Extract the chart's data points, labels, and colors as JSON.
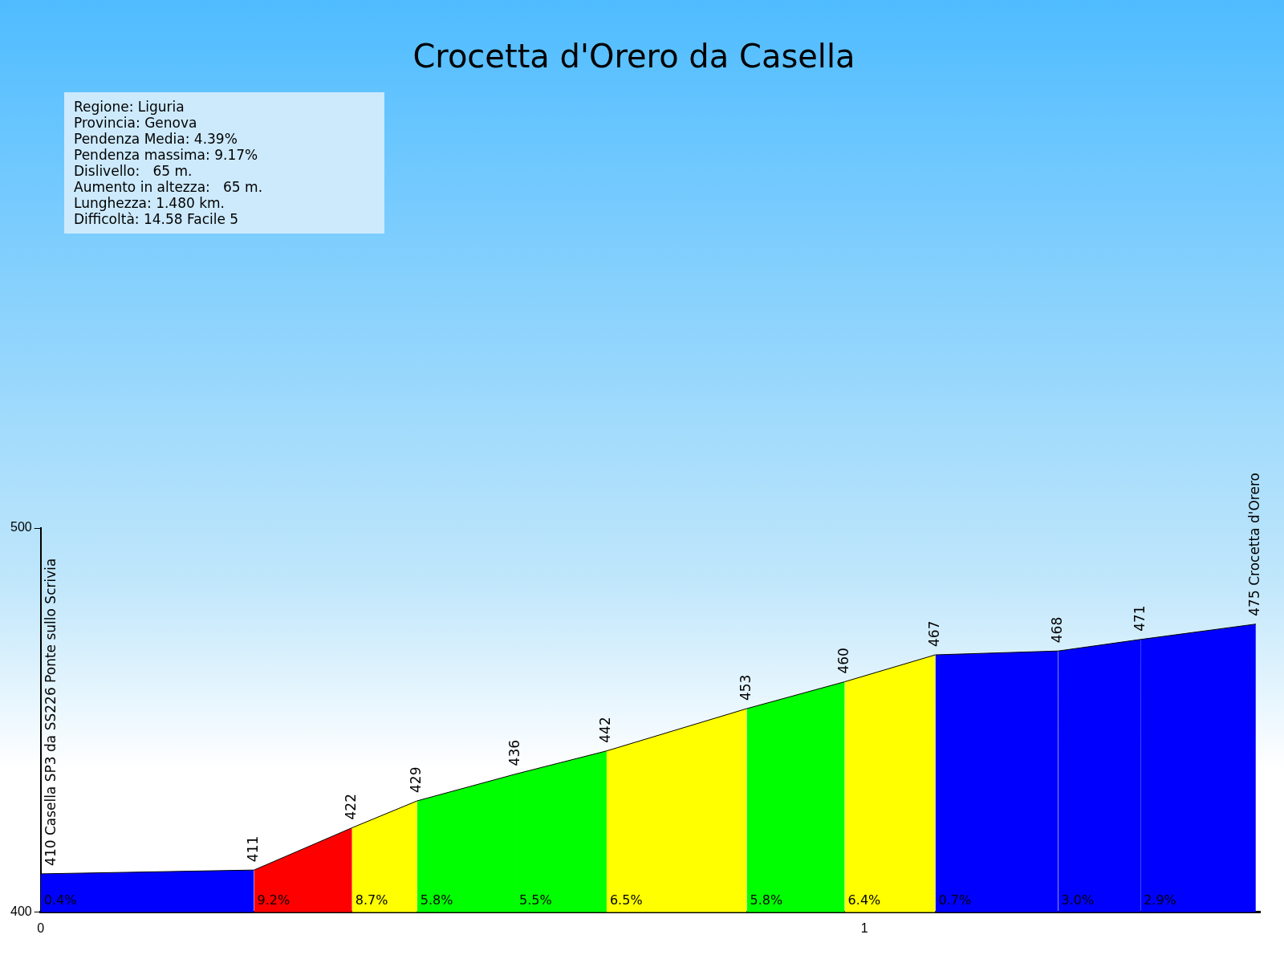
{
  "chart_data": {
    "type": "area",
    "title": "Crocetta d'Orero da Casella",
    "series": [
      {
        "name": "0.4%",
        "color": "#0000ff",
        "x": [
          0,
          0.259
        ],
        "values": [
          410,
          411
        ],
        "value_labels": [
          "410 Casella SP3 da SS226 Ponte sullo Scrivia",
          "411"
        ]
      },
      {
        "name": "9.2%",
        "color": "#ff0000",
        "x": [
          0.259,
          0.378
        ],
        "values": [
          411,
          422
        ],
        "value_labels": [
          null,
          "422"
        ]
      },
      {
        "name": "8.7%",
        "color": "#ffff00",
        "x": [
          0.378,
          0.457
        ],
        "values": [
          422,
          429
        ],
        "value_labels": [
          null,
          "429"
        ]
      },
      {
        "name": "5.8%",
        "color": "#00ff00",
        "x": [
          0.457,
          0.577
        ],
        "values": [
          429,
          436
        ],
        "value_labels": [
          null,
          "436"
        ]
      },
      {
        "name": "5.5%",
        "color": "#00ff00",
        "x": [
          0.577,
          0.687
        ],
        "values": [
          436,
          442
        ],
        "value_labels": [
          null,
          "442"
        ]
      },
      {
        "name": "6.5%",
        "color": "#ffff00",
        "x": [
          0.687,
          0.857
        ],
        "values": [
          442,
          453
        ],
        "value_labels": [
          null,
          "453"
        ]
      },
      {
        "name": "5.8%",
        "color": "#00ff00",
        "x": [
          0.857,
          0.976
        ],
        "values": [
          453,
          460
        ],
        "value_labels": [
          null,
          "460"
        ]
      },
      {
        "name": "6.4%",
        "color": "#ffff00",
        "x": [
          0.976,
          1.086
        ],
        "values": [
          460,
          467
        ],
        "value_labels": [
          null,
          "467"
        ]
      },
      {
        "name": "0.7%",
        "color": "#0000ff",
        "x": [
          1.086,
          1.235
        ],
        "values": [
          467,
          468
        ],
        "value_labels": [
          null,
          "468"
        ]
      },
      {
        "name": "3.0%",
        "color": "#0000ff",
        "x": [
          1.235,
          1.335
        ],
        "values": [
          468,
          471
        ],
        "value_labels": [
          null,
          "471"
        ]
      },
      {
        "name": "2.9%",
        "color": "#0000ff",
        "x": [
          1.335,
          1.475
        ],
        "values": [
          471,
          475
        ],
        "value_labels": [
          null,
          "475 Crocetta d'Orero"
        ]
      }
    ],
    "xlim": [
      0,
      1.48
    ],
    "xticks": [
      0,
      1
    ],
    "ylim": [
      400,
      500
    ],
    "yticks": [
      400,
      500
    ],
    "annotations": [
      "Regione: Liguria",
      "Provincia: Genova",
      "Pendenza Media: 4.39%",
      "Pendenza massima: 9.17%",
      "Dislivello:   65 m.",
      "Aumento in altezza:   65 m.",
      "Lunghezza: 1.480 km.",
      "Difficoltà: 14.58 Facile 5"
    ],
    "grid": false,
    "legend": false,
    "marker": "none"
  }
}
